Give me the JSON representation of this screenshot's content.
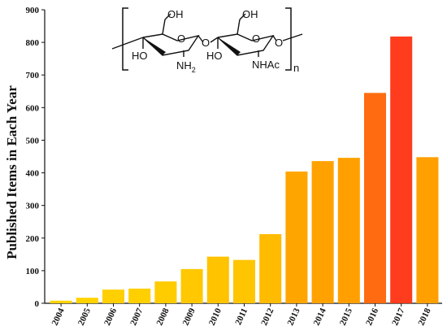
{
  "chart_data": {
    "type": "bar",
    "title": "",
    "xlabel": "",
    "ylabel": "Published Items in Each Year",
    "categories": [
      "2004",
      "2005",
      "2006",
      "2007",
      "2008",
      "2009",
      "2010",
      "2011",
      "2012",
      "2013",
      "2014",
      "2015",
      "2016",
      "2017",
      "2018"
    ],
    "values": [
      8,
      17,
      42,
      45,
      67,
      105,
      143,
      133,
      212,
      404,
      436,
      446,
      645,
      818,
      448
    ],
    "ylim": [
      0,
      900
    ],
    "yticks": [
      0,
      100,
      200,
      300,
      400,
      500,
      600,
      700,
      800,
      900
    ],
    "grid": false,
    "legend": "none",
    "colors": {
      "low": "#ffd400",
      "mid": "#ffa000",
      "high": "#ff3c1e",
      "axis": "#111111"
    }
  },
  "structure": {
    "oh_left": "OH",
    "oh_right": "OH",
    "ho_left": "HO",
    "ho_right": "HO",
    "nh_label": "NH",
    "nh_sub": "2",
    "nhac": "NHAc",
    "o_ring_left": "O",
    "o_ring_right": "O",
    "o_link": "O",
    "o_end": "O",
    "repeat_n": "n"
  }
}
